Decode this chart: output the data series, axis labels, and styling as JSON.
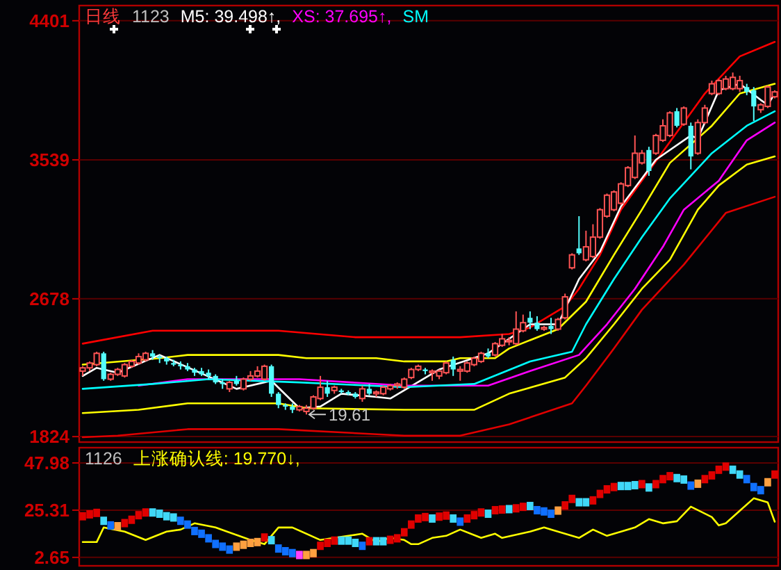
{
  "chart_data": [
    {
      "type": "candlestick",
      "title": "日线",
      "subtitle": "1123",
      "legend": "top left",
      "grid": "y",
      "tick_labels": "y",
      "ylim": [
        1790,
        4495
      ],
      "yticks": [
        1824,
        2678,
        3539,
        4401
      ],
      "categories": [
        null,
        null,
        null,
        null,
        null,
        null,
        null,
        null,
        null,
        null,
        null,
        null,
        null,
        null,
        null,
        null,
        null,
        null,
        null,
        null,
        null,
        null,
        null,
        null,
        null,
        null,
        null,
        null,
        null,
        null,
        null,
        null,
        null,
        null,
        null,
        null,
        null,
        null,
        null,
        null,
        null,
        null,
        null,
        null,
        null,
        null,
        null,
        null,
        null,
        null,
        null,
        null,
        null,
        null,
        null,
        null,
        null,
        null,
        null,
        null,
        null,
        null,
        null,
        null,
        null,
        null,
        null,
        null,
        null,
        null,
        null,
        null,
        null,
        null,
        null,
        null,
        null,
        null,
        null,
        null,
        null,
        null,
        null,
        null,
        null,
        null,
        null,
        null,
        null,
        null,
        null,
        null,
        null,
        null,
        null,
        null,
        null,
        null,
        null,
        null
      ],
      "ohlc": [
        [
          2230,
          2260,
          2200,
          2250
        ],
        [
          2250,
          2290,
          2230,
          2280
        ],
        [
          2270,
          2350,
          2260,
          2340
        ],
        [
          2340,
          2350,
          2170,
          2180
        ],
        [
          2180,
          2220,
          2170,
          2210
        ],
        [
          2210,
          2250,
          2200,
          2240
        ],
        [
          2200,
          2280,
          2190,
          2270
        ],
        [
          2260,
          2300,
          2250,
          2290
        ],
        [
          2280,
          2340,
          2270,
          2320
        ],
        [
          2300,
          2350,
          2290,
          2340
        ],
        [
          2340,
          2360,
          2300,
          2320
        ],
        [
          2320,
          2330,
          2280,
          2310
        ],
        [
          2310,
          2320,
          2270,
          2290
        ],
        [
          2280,
          2300,
          2260,
          2270
        ],
        [
          2270,
          2290,
          2240,
          2260
        ],
        [
          2260,
          2280,
          2230,
          2240
        ],
        [
          2240,
          2250,
          2200,
          2220
        ],
        [
          2230,
          2250,
          2200,
          2210
        ],
        [
          2220,
          2240,
          2180,
          2200
        ],
        [
          2200,
          2210,
          2150,
          2160
        ],
        [
          2160,
          2180,
          2120,
          2150
        ],
        [
          2120,
          2170,
          2100,
          2160
        ],
        [
          2170,
          2200,
          2140,
          2150
        ],
        [
          2120,
          2190,
          2110,
          2180
        ],
        [
          2180,
          2230,
          2170,
          2200
        ],
        [
          2200,
          2260,
          2190,
          2230
        ],
        [
          2180,
          2270,
          2170,
          2260
        ],
        [
          2260,
          2270,
          2070,
          2090
        ],
        [
          2090,
          2100,
          2000,
          2020
        ],
        [
          2020,
          2030,
          1990,
          2010
        ],
        [
          2010,
          2030,
          1970,
          1990
        ],
        [
          1990,
          2020,
          1980,
          2010
        ],
        [
          1980,
          2020,
          1961,
          2000
        ],
        [
          2000,
          2080,
          1990,
          2070
        ],
        [
          2060,
          2200,
          2050,
          2130
        ],
        [
          2130,
          2170,
          2070,
          2090
        ],
        [
          2110,
          2140,
          2090,
          2130
        ],
        [
          2110,
          2120,
          2090,
          2100
        ],
        [
          2100,
          2110,
          2080,
          2090
        ],
        [
          2090,
          2100,
          2060,
          2070
        ],
        [
          2060,
          2140,
          2040,
          2120
        ],
        [
          2120,
          2150,
          2080,
          2090
        ],
        [
          2090,
          2110,
          2070,
          2100
        ],
        [
          2090,
          2140,
          2080,
          2130
        ],
        [
          2120,
          2150,
          2110,
          2140
        ],
        [
          2140,
          2160,
          2120,
          2150
        ],
        [
          2130,
          2190,
          2120,
          2180
        ],
        [
          2190,
          2250,
          2180,
          2240
        ],
        [
          2240,
          2270,
          2230,
          2260
        ],
        [
          2240,
          2250,
          2210,
          2230
        ],
        [
          2220,
          2240,
          2170,
          2230
        ],
        [
          2200,
          2240,
          2180,
          2230
        ],
        [
          2220,
          2290,
          2210,
          2280
        ],
        [
          2300,
          2320,
          2200,
          2240
        ],
        [
          2230,
          2260,
          2170,
          2240
        ],
        [
          2230,
          2290,
          2220,
          2280
        ],
        [
          2270,
          2320,
          2260,
          2310
        ],
        [
          2290,
          2350,
          2280,
          2340
        ],
        [
          2340,
          2370,
          2310,
          2320
        ],
        [
          2330,
          2410,
          2320,
          2400
        ],
        [
          2390,
          2460,
          2380,
          2430
        ],
        [
          2420,
          2440,
          2390,
          2420
        ],
        [
          2400,
          2600,
          2390,
          2490
        ],
        [
          2480,
          2580,
          2470,
          2530
        ],
        [
          2560,
          2600,
          2490,
          2530
        ],
        [
          2530,
          2570,
          2480,
          2490
        ],
        [
          2490,
          2510,
          2480,
          2500
        ],
        [
          2510,
          2560,
          2460,
          2490
        ],
        [
          2490,
          2560,
          2480,
          2550
        ],
        [
          2560,
          2710,
          2550,
          2690
        ],
        [
          2870,
          2960,
          2860,
          2950
        ],
        [
          2990,
          3190,
          2950,
          2960
        ],
        [
          2920,
          3100,
          2910,
          3000
        ],
        [
          2940,
          3140,
          2930,
          3060
        ],
        [
          3060,
          3240,
          3050,
          3230
        ],
        [
          3190,
          3330,
          3180,
          3320
        ],
        [
          3230,
          3350,
          3220,
          3340
        ],
        [
          3270,
          3400,
          3260,
          3390
        ],
        [
          3380,
          3500,
          3370,
          3490
        ],
        [
          3430,
          3690,
          3420,
          3580
        ],
        [
          3520,
          3600,
          3510,
          3580
        ],
        [
          3600,
          3620,
          3440,
          3470
        ],
        [
          3580,
          3700,
          3570,
          3690
        ],
        [
          3660,
          3790,
          3650,
          3750
        ],
        [
          3690,
          3840,
          3680,
          3830
        ],
        [
          3840,
          3860,
          3740,
          3750
        ],
        [
          3760,
          3870,
          3750,
          3860
        ],
        [
          3750,
          3770,
          3480,
          3560
        ],
        [
          3580,
          3790,
          3570,
          3770
        ],
        [
          3770,
          3880,
          3760,
          3860
        ],
        [
          3950,
          4030,
          3940,
          4010
        ],
        [
          3950,
          4040,
          3940,
          4030
        ],
        [
          3980,
          4060,
          3970,
          4040
        ],
        [
          3980,
          4080,
          3970,
          4050
        ],
        [
          3980,
          4060,
          3960,
          4030
        ],
        [
          3990,
          4010,
          3940,
          3960
        ],
        [
          3970,
          3990,
          3780,
          3870
        ],
        [
          3850,
          3890,
          3830,
          3880
        ],
        [
          3870,
          4000,
          3860,
          3990
        ],
        [
          3930,
          3970,
          3920,
          3960
        ]
      ],
      "series": [
        {
          "type": "line",
          "color": "#ff0000",
          "values": [
            2400,
            null,
            null,
            null,
            null,
            null,
            null,
            null,
            null,
            null,
            2480,
            null,
            null,
            null,
            null,
            null,
            null,
            null,
            null,
            null,
            null,
            null,
            null,
            null,
            null,
            null,
            null,
            null,
            2480,
            null,
            null,
            null,
            null,
            null,
            null,
            null,
            null,
            null,
            null,
            2440,
            null,
            null,
            null,
            null,
            null,
            null,
            null,
            null,
            null,
            null,
            null,
            null,
            null,
            null,
            2440,
            null,
            null,
            null,
            null,
            null,
            null,
            2460,
            null,
            null,
            2500,
            null,
            null,
            null,
            null,
            2630,
            null,
            2740,
            null,
            null,
            2950,
            null,
            null,
            3230,
            null,
            null,
            null,
            null,
            null,
            null,
            null,
            null,
            null,
            null,
            null,
            3950,
            null,
            null,
            null,
            null,
            4180,
            null,
            null,
            null,
            null,
            4270
          ]
        },
        {
          "type": "line",
          "color": "#ffff00",
          "values": [
            2270,
            null,
            null,
            null,
            null,
            null,
            null,
            null,
            null,
            null,
            null,
            2310,
            null,
            null,
            null,
            2330,
            null,
            null,
            null,
            null,
            null,
            null,
            null,
            null,
            null,
            null,
            null,
            null,
            2330,
            null,
            null,
            null,
            2310,
            null,
            null,
            null,
            null,
            null,
            null,
            null,
            null,
            null,
            2310,
            null,
            null,
            null,
            2290,
            null,
            null,
            null,
            null,
            null,
            2290,
            null,
            2310,
            null,
            null,
            null,
            null,
            2310,
            null,
            2370,
            null,
            null,
            null,
            null,
            null,
            null,
            2490,
            null,
            null,
            null,
            2660,
            null,
            null,
            null,
            2950,
            null,
            null,
            null,
            3230,
            null,
            null,
            null,
            3520,
            null,
            null,
            null,
            null,
            null,
            3750,
            null,
            null,
            null,
            3950,
            null,
            null,
            null,
            null,
            4010
          ]
        },
        {
          "type": "line",
          "name": "M5: 39.498↑,",
          "color": "#ffffff",
          "values": [
            2200,
            null,
            2250,
            null,
            null,
            2220,
            null,
            null,
            null,
            null,
            null,
            2330,
            null,
            null,
            null,
            null,
            null,
            null,
            null,
            null,
            null,
            null,
            2120,
            null,
            null,
            null,
            null,
            2170,
            null,
            null,
            null,
            2000,
            null,
            null,
            2010,
            null,
            null,
            2090,
            null,
            null,
            null,
            null,
            2070,
            null,
            2060,
            null,
            null,
            null,
            null,
            null,
            null,
            2240,
            null,
            null,
            null,
            null,
            null,
            null,
            2340,
            null,
            null,
            null,
            null,
            null,
            2520,
            null,
            null,
            null,
            2520,
            null,
            null,
            2800,
            null,
            null,
            2970,
            null,
            null,
            3250,
            null,
            null,
            null,
            null,
            3540,
            null,
            null,
            null,
            null,
            3690,
            3670,
            null,
            null,
            3970,
            null,
            null,
            4010,
            null,
            null,
            3910,
            3880,
            3950
          ]
        },
        {
          "type": "line",
          "name": "XS: 37.695↑,",
          "color": "#ff00ff",
          "values": [
            null,
            null,
            null,
            null,
            null,
            null,
            null,
            null,
            2140,
            null,
            null,
            null,
            null,
            null,
            null,
            2180,
            null,
            null,
            null,
            null,
            null,
            null,
            null,
            null,
            null,
            null,
            null,
            null,
            null,
            null,
            null,
            2180,
            null,
            null,
            null,
            null,
            null,
            null,
            null,
            null,
            null,
            null,
            null,
            null,
            null,
            null,
            2140,
            null,
            null,
            null,
            null,
            null,
            null,
            null,
            null,
            null,
            null,
            null,
            2140,
            null,
            null,
            null,
            null,
            null,
            2230,
            null,
            null,
            null,
            null,
            null,
            null,
            2330,
            null,
            null,
            null,
            2520,
            null,
            null,
            null,
            2740,
            null,
            null,
            null,
            3000,
            null,
            null,
            3230,
            null,
            null,
            null,
            null,
            3410,
            null,
            null,
            null,
            3660,
            null,
            null,
            null,
            3770
          ]
        },
        {
          "type": "line",
          "name": "SM",
          "color": "#00ffff",
          "values": [
            2120,
            null,
            null,
            null,
            null,
            null,
            null,
            null,
            null,
            null,
            2150,
            null,
            null,
            null,
            null,
            null,
            null,
            null,
            2180,
            null,
            null,
            null,
            null,
            null,
            null,
            null,
            null,
            null,
            null,
            null,
            null,
            2160,
            null,
            null,
            null,
            null,
            null,
            null,
            null,
            null,
            null,
            null,
            null,
            null,
            null,
            null,
            2130,
            null,
            null,
            null,
            null,
            null,
            null,
            null,
            null,
            null,
            2150,
            null,
            null,
            null,
            null,
            null,
            null,
            null,
            2290,
            null,
            null,
            null,
            null,
            null,
            2350,
            null,
            2520,
            null,
            null,
            null,
            2800,
            null,
            null,
            null,
            3060,
            null,
            null,
            null,
            3300,
            null,
            null,
            null,
            null,
            null,
            3580,
            null,
            null,
            null,
            null,
            3750,
            null,
            null,
            null,
            3840
          ]
        },
        {
          "type": "line",
          "color": "#ffff00",
          "values": [
            1970,
            null,
            null,
            null,
            null,
            null,
            null,
            null,
            1990,
            null,
            null,
            null,
            null,
            null,
            null,
            2030,
            null,
            null,
            null,
            null,
            null,
            null,
            null,
            null,
            null,
            null,
            null,
            null,
            2030,
            null,
            null,
            null,
            2000,
            null,
            null,
            null,
            null,
            null,
            null,
            null,
            null,
            null,
            null,
            null,
            null,
            null,
            1990,
            null,
            null,
            null,
            null,
            null,
            null,
            null,
            null,
            null,
            1990,
            null,
            null,
            null,
            null,
            2090,
            null,
            null,
            null,
            null,
            null,
            null,
            null,
            2190,
            null,
            null,
            2310,
            null,
            null,
            null,
            2520,
            null,
            null,
            null,
            2740,
            null,
            null,
            null,
            2920,
            null,
            null,
            null,
            3230,
            null,
            null,
            3380,
            null,
            null,
            null,
            3510,
            null,
            null,
            null,
            3560
          ]
        },
        {
          "type": "line",
          "color": "#e00000",
          "values": [
            1820,
            null,
            null,
            null,
            null,
            1830,
            null,
            null,
            null,
            null,
            null,
            null,
            null,
            null,
            null,
            1870,
            null,
            null,
            null,
            null,
            null,
            null,
            null,
            null,
            null,
            null,
            null,
            null,
            1870,
            null,
            null,
            null,
            null,
            null,
            null,
            null,
            null,
            null,
            null,
            null,
            null,
            null,
            null,
            null,
            null,
            null,
            1830,
            null,
            null,
            null,
            null,
            null,
            null,
            null,
            1830,
            null,
            null,
            null,
            null,
            null,
            null,
            1900,
            null,
            null,
            null,
            null,
            null,
            null,
            null,
            null,
            2030,
            null,
            2140,
            null,
            null,
            null,
            2370,
            null,
            null,
            null,
            2610,
            null,
            null,
            null,
            null,
            null,
            2890,
            null,
            null,
            null,
            null,
            null,
            3210,
            null,
            null,
            null,
            null,
            null,
            null,
            3310
          ]
        }
      ],
      "annotations": [
        {
          "text": "19.61",
          "y": 1961
        }
      ]
    },
    {
      "type": "scatter",
      "subtitle": "1126",
      "legend": "top left",
      "grid": "y",
      "tick_labels": "y",
      "ylim": [
        -1.4,
        55.3
      ],
      "yticks": [
        2.65,
        25.31,
        47.98
      ],
      "categories": [
        null,
        null,
        null,
        null,
        null,
        null,
        null,
        null,
        null,
        null,
        null,
        null,
        null,
        null,
        null,
        null,
        null,
        null,
        null,
        null,
        null,
        null,
        null,
        null,
        null,
        null,
        null,
        null,
        null,
        null,
        null,
        null,
        null,
        null,
        null,
        null,
        null,
        null,
        null,
        null,
        null,
        null,
        null,
        null,
        null,
        null,
        null,
        null,
        null,
        null,
        null,
        null,
        null,
        null,
        null,
        null,
        null,
        null,
        null,
        null,
        null,
        null,
        null,
        null,
        null,
        null,
        null,
        null,
        null,
        null,
        null,
        null,
        null,
        null,
        null,
        null,
        null,
        null,
        null,
        null,
        null,
        null,
        null,
        null,
        null,
        null,
        null,
        null,
        null,
        null,
        null,
        null,
        null,
        null,
        null,
        null,
        null,
        null,
        null,
        null
      ],
      "series": [
        {
          "type": "line",
          "name": "上涨确认线: 19.770↓,",
          "color": "#ffff00",
          "values": [
            10,
            null,
            10,
            17,
            null,
            null,
            15,
            null,
            null,
            11,
            null,
            null,
            15,
            null,
            16,
            null,
            19,
            null,
            null,
            17,
            null,
            null,
            null,
            null,
            11,
            10,
            9,
            null,
            17,
            null,
            17,
            null,
            null,
            null,
            11,
            null,
            null,
            null,
            13,
            null,
            14,
            null,
            10,
            null,
            12,
            null,
            11,
            9,
            9,
            null,
            12,
            null,
            13,
            null,
            16,
            null,
            null,
            12,
            null,
            14,
            12,
            null,
            null,
            null,
            15,
            null,
            17,
            null,
            null,
            null,
            null,
            12,
            null,
            16,
            null,
            13,
            null,
            null,
            null,
            17,
            null,
            21,
            null,
            19,
            null,
            20,
            null,
            27,
            null,
            null,
            22,
            18,
            19,
            null,
            25,
            null,
            31,
            null,
            29,
            19.8
          ]
        },
        {
          "type": "scatter",
          "marker": "square",
          "values": [
            22.4,
            23.3,
            24.0,
            20.2,
            18.0,
            17.6,
            19.1,
            20.7,
            22.9,
            24.2,
            24.2,
            23.6,
            22.4,
            21.8,
            20.2,
            18.4,
            15.3,
            14.0,
            11.8,
            9.1,
            7.8,
            6.4,
            7.8,
            8.7,
            9.6,
            10.0,
            12.2,
            10.9,
            6.9,
            5.6,
            4.7,
            3.8,
            3.8,
            4.7,
            8.2,
            9.6,
            10.7,
            10.7,
            10.7,
            9.6,
            8.2,
            10.4,
            10.4,
            10.4,
            11.1,
            11.8,
            14.7,
            18.4,
            21.3,
            22.0,
            21.3,
            22.2,
            22.7,
            21.3,
            19.8,
            21.3,
            22.9,
            24.2,
            23.6,
            25.3,
            25.6,
            25.8,
            26.2,
            26.9,
            27.3,
            25.3,
            24.7,
            23.6,
            25.1,
            27.6,
            30.7,
            29.1,
            29.1,
            30.0,
            33.1,
            35.3,
            36.4,
            36.9,
            36.9,
            37.3,
            37.8,
            36.2,
            37.8,
            40.2,
            41.6,
            40.7,
            40.0,
            37.1,
            38.0,
            40.2,
            42.0,
            44.7,
            46.2,
            44.7,
            42.4,
            40.2,
            36.4,
            34.9,
            38.7,
            42.4
          ],
          "colors": [
            "#e00000",
            "#e00000",
            "#e00000",
            "#40d8f8",
            "#1070ff",
            "#ffa040",
            "#e00000",
            "#e00000",
            "#e00000",
            "#e00000",
            "#40d8f8",
            "#40d8f8",
            "#40d8f8",
            "#40d8f8",
            "#1070ff",
            "#1070ff",
            "#1070ff",
            "#1070ff",
            "#1070ff",
            "#1070ff",
            "#1070ff",
            "#1070ff",
            "#ffa040",
            "#ffa040",
            "#ffa040",
            "#ffa040",
            "#e00000",
            "#40d8f8",
            "#1070ff",
            "#1070ff",
            "#1070ff",
            "#ff40ff",
            "#ffa040",
            "#ffa040",
            "#e00000",
            "#e00000",
            "#e00000",
            "#40d8f8",
            "#40d8f8",
            "#40d8f8",
            "#1070ff",
            "#e00000",
            "#40d8f8",
            "#40d8f8",
            "#e00000",
            "#e00000",
            "#e00000",
            "#e00000",
            "#e00000",
            "#e00000",
            "#40d8f8",
            "#e00000",
            "#e00000",
            "#40d8f8",
            "#1070ff",
            "#e00000",
            "#e00000",
            "#e00000",
            "#40d8f8",
            "#e00000",
            "#e00000",
            "#40d8f8",
            "#e00000",
            "#e00000",
            "#40d8f8",
            "#1070ff",
            "#1070ff",
            "#1070ff",
            "#ffa040",
            "#e00000",
            "#e00000",
            "#40d8f8",
            "#40d8f8",
            "#e00000",
            "#e00000",
            "#e00000",
            "#e00000",
            "#40d8f8",
            "#40d8f8",
            "#40d8f8",
            "#e00000",
            "#40d8f8",
            "#e00000",
            "#e00000",
            "#e00000",
            "#40d8f8",
            "#40d8f8",
            "#1070ff",
            "#ffa040",
            "#e00000",
            "#e00000",
            "#e00000",
            "#e00000",
            "#40d8f8",
            "#40d8f8",
            "#1070ff",
            "#1070ff",
            "#1070ff",
            "#ffa040",
            "#e00000"
          ]
        }
      ]
    }
  ]
}
